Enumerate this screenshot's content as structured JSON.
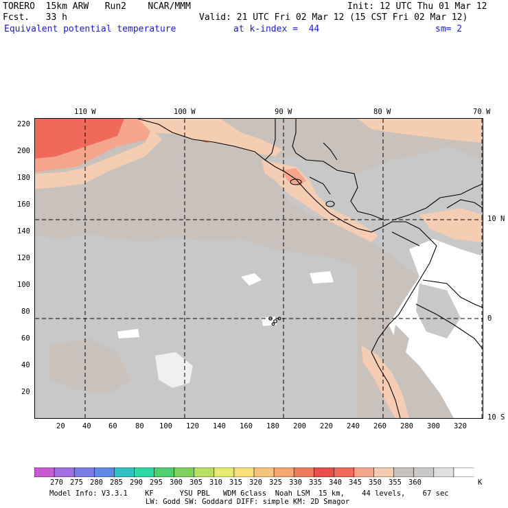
{
  "header": {
    "model": "TORERO  15km ARW   Run2    NCAR/MMM",
    "init": "Init: 12 UTC Thu 01 Mar 12",
    "fcst": "Fcst.   33 h",
    "valid": "Valid: 21 UTC Fri 02 Mar 12 (15 CST Fri 02 Mar 12)",
    "field": "Equivalent potential temperature",
    "level": "at k-index =  44",
    "smooth": "sm= 2"
  },
  "map": {
    "top_longitude_labels": [
      "110 W",
      "100 W",
      "90 W",
      "80 W",
      "70 W"
    ],
    "right_latitude_labels": [
      "10 N",
      "0",
      "10 S"
    ],
    "left_grid_labels": [
      "220",
      "200",
      "180",
      "160",
      "140",
      "120",
      "100",
      "80",
      "60",
      "40",
      "20"
    ],
    "bottom_grid_labels": [
      "20",
      "40",
      "60",
      "80",
      "100",
      "120",
      "140",
      "160",
      "180",
      "200",
      "220",
      "240",
      "260",
      "280",
      "300",
      "320"
    ],
    "colors": {
      "tan_350": "#c9c1bb",
      "gray_355": "#c8c8c8",
      "white_360": "#ffffff",
      "peach_340": "#f5cdb3",
      "salmon_335": "#f5a58c",
      "red_330": "#f06a5a"
    }
  },
  "colorbar": {
    "colors": [
      "#c85ad2",
      "#a46fe0",
      "#7b7de8",
      "#5f8ae8",
      "#33c3c3",
      "#2fd7a3",
      "#4ed06e",
      "#7ed05a",
      "#b7e060",
      "#e6ea6f",
      "#f7e07a",
      "#f7c27a",
      "#f5a66e",
      "#f07a5e",
      "#ea4f4a",
      "#f06a5a",
      "#f5a58c",
      "#f5cdb3",
      "#c9c1bb",
      "#c8c8c8",
      "#e0e0e0",
      "#ffffff"
    ],
    "labels": [
      "270",
      "275",
      "280",
      "285",
      "290",
      "295",
      "300",
      "305",
      "310",
      "315",
      "320",
      "325",
      "330",
      "335",
      "340",
      "345",
      "350",
      "355",
      "360"
    ],
    "unit": "K"
  },
  "footer": {
    "line1": "Model Info: V3.3.1    KF      YSU PBL   WDM 6class  Noah LSM  15 km,    44 levels,    67 sec",
    "line2": "LW: Godd SW: Goddard DIFF: simple KM: 2D Smagor"
  }
}
